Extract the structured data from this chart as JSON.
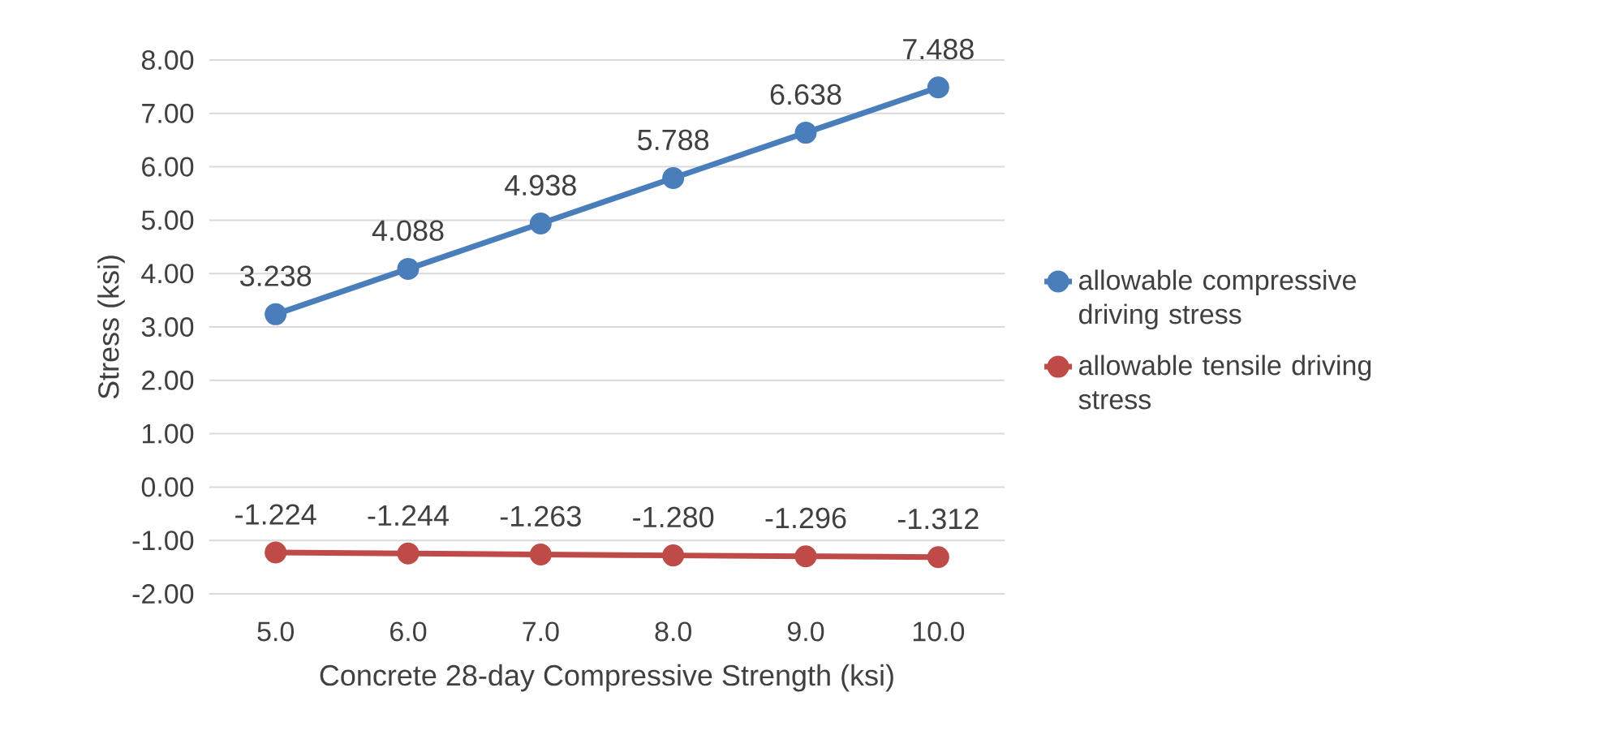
{
  "chart_data": {
    "type": "line",
    "xlabel": "Concrete 28-day Compressive Strength (ksi)",
    "ylabel": "Stress (ksi)",
    "categories": [
      "5.0",
      "6.0",
      "7.0",
      "8.0",
      "9.0",
      "10.0"
    ],
    "series": [
      {
        "name": "allowable compressive driving stress",
        "color": "#4a7ebb",
        "values": [
          3.238,
          4.088,
          4.938,
          5.788,
          6.638,
          7.488
        ],
        "value_labels": [
          "3.238",
          "4.088",
          "4.938",
          "5.788",
          "6.638",
          "7.488"
        ]
      },
      {
        "name": "allowable tensile driving stress",
        "color": "#be4b48",
        "values": [
          -1.224,
          -1.244,
          -1.263,
          -1.28,
          -1.296,
          -1.312
        ],
        "value_labels": [
          "-1.224",
          "-1.244",
          "-1.263",
          "-1.280",
          "-1.296",
          "-1.312"
        ]
      }
    ],
    "ylim": [
      -2,
      8
    ],
    "yticks": [
      {
        "value": -2,
        "label": "-2.00"
      },
      {
        "value": -1,
        "label": "-1.00"
      },
      {
        "value": 0,
        "label": "0.00"
      },
      {
        "value": 1,
        "label": "1.00"
      },
      {
        "value": 2,
        "label": "2.00"
      },
      {
        "value": 3,
        "label": "3.00"
      },
      {
        "value": 4,
        "label": "4.00"
      },
      {
        "value": 5,
        "label": "5.00"
      },
      {
        "value": 6,
        "label": "6.00"
      },
      {
        "value": 7,
        "label": "7.00"
      },
      {
        "value": 8,
        "label": "8.00"
      }
    ],
    "grid": "y",
    "legend": "right",
    "marker": "circle",
    "line_style": "solid"
  }
}
